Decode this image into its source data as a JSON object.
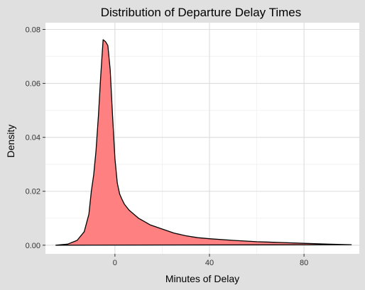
{
  "chart_data": {
    "type": "area",
    "title": "Distribution of Departure Delay Times",
    "xlabel": "Minutes of Delay",
    "ylabel": "Density",
    "xlim": [
      -29.4,
      103.4
    ],
    "ylim": [
      -0.0032,
      0.0825
    ],
    "x_ticks": [
      0,
      40,
      80
    ],
    "y_ticks": [
      0.0,
      0.02,
      0.04,
      0.06,
      0.08
    ],
    "x_tick_labels": [
      "0",
      "40",
      "80"
    ],
    "y_tick_labels": [
      "0.00",
      "0.02",
      "0.04",
      "0.06",
      "0.08"
    ],
    "grid": true,
    "legend": "none",
    "fill_color": "#ff8080",
    "line_color": "#000000",
    "panel_color": "#ffffff",
    "grid_color": "#dcdcdc",
    "series": [
      {
        "x": [
          -25,
          -20,
          -16,
          -13,
          -11,
          -10,
          -9,
          -8,
          -7,
          -6,
          -5,
          -4,
          -3,
          -2,
          -1,
          0,
          1,
          2,
          3,
          4,
          6,
          8,
          10,
          12,
          15,
          20,
          25,
          30,
          35,
          40,
          50,
          60,
          70,
          80,
          90,
          100
        ],
        "y": [
          0.0,
          0.0004,
          0.0018,
          0.005,
          0.0115,
          0.02,
          0.026,
          0.035,
          0.048,
          0.063,
          0.0762,
          0.0755,
          0.074,
          0.065,
          0.048,
          0.032,
          0.023,
          0.019,
          0.017,
          0.0152,
          0.013,
          0.0115,
          0.01,
          0.009,
          0.0075,
          0.006,
          0.0045,
          0.0035,
          0.0028,
          0.0024,
          0.0018,
          0.0013,
          0.001,
          0.0007,
          0.0004,
          0.0002
        ]
      }
    ]
  }
}
